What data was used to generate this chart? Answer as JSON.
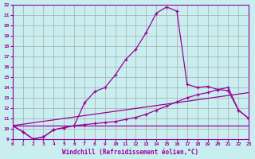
{
  "background_color": "#c8eef0",
  "grid_color": "#aaaaaa",
  "line_color": "#990099",
  "xlabel": "Windchill (Refroidissement éolien,°C)",
  "xlim": [
    0,
    23
  ],
  "ylim": [
    9,
    22
  ],
  "xticks": [
    0,
    1,
    2,
    3,
    4,
    5,
    6,
    7,
    8,
    9,
    10,
    11,
    12,
    13,
    14,
    15,
    16,
    17,
    18,
    19,
    20,
    21,
    22,
    23
  ],
  "yticks": [
    9,
    10,
    11,
    12,
    13,
    14,
    15,
    16,
    17,
    18,
    19,
    20,
    21,
    22
  ],
  "curve1_x": [
    0,
    1,
    2,
    3,
    4,
    5,
    6,
    7,
    8,
    9,
    10,
    11,
    12,
    13,
    14,
    15,
    16,
    17,
    18,
    19,
    20,
    21,
    22,
    23
  ],
  "curve1_y": [
    10.3,
    9.7,
    9.0,
    9.2,
    9.9,
    10.1,
    10.3,
    12.5,
    13.6,
    14.0,
    15.2,
    16.7,
    17.7,
    19.3,
    21.2,
    21.8,
    21.4,
    14.3,
    14.0,
    14.1,
    13.8,
    13.7,
    11.8,
    11.0
  ],
  "curve2_x": [
    0,
    1,
    2,
    3,
    4,
    5,
    6,
    7,
    8,
    9,
    10,
    11,
    12,
    13,
    14,
    15,
    16,
    17,
    18,
    19,
    20,
    21,
    22,
    23
  ],
  "curve2_y": [
    10.3,
    9.7,
    9.0,
    9.2,
    9.9,
    10.1,
    10.3,
    10.4,
    10.5,
    10.6,
    10.7,
    10.9,
    11.1,
    11.4,
    11.8,
    12.2,
    12.6,
    13.0,
    13.3,
    13.5,
    13.8,
    14.0,
    11.8,
    11.0
  ],
  "line1_x": [
    0,
    23
  ],
  "line1_y": [
    10.3,
    13.5
  ],
  "line2_x": [
    0,
    6,
    10,
    23
  ],
  "line2_y": [
    10.3,
    10.3,
    10.3,
    10.3
  ]
}
